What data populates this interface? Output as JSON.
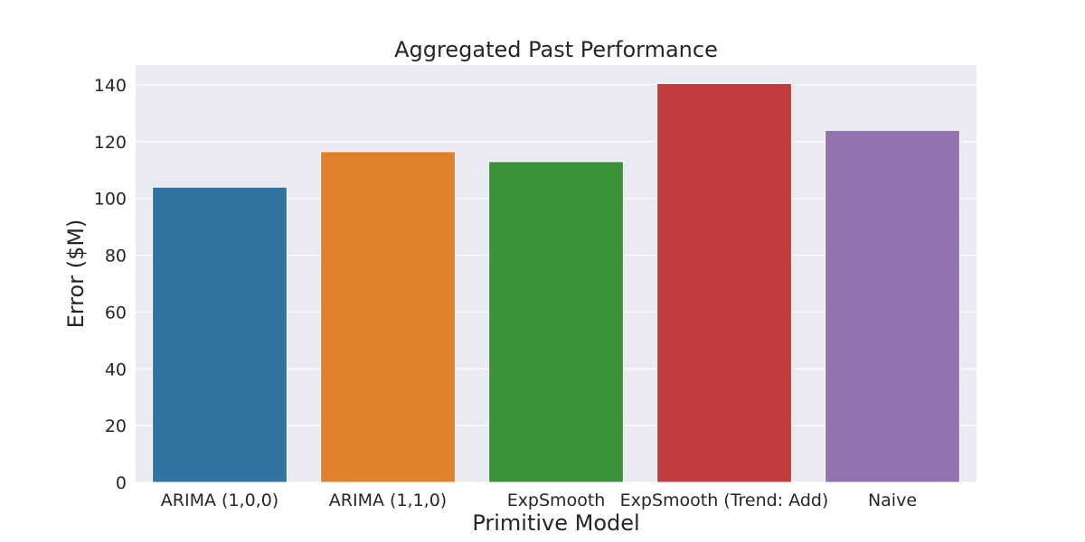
{
  "chart_data": {
    "type": "bar",
    "title": "Aggregated Past Performance",
    "xlabel": "Primitive Model",
    "ylabel": "Error ($M)",
    "categories": [
      "ARIMA (1,0,0)",
      "ARIMA (1,1,0)",
      "ExpSmooth",
      "ExpSmooth (Trend: Add)",
      "Naive"
    ],
    "values": [
      104,
      116.5,
      113,
      140.5,
      124
    ],
    "colors": [
      "#3274a1",
      "#e1812c",
      "#3a923a",
      "#c03d3e",
      "#9372b2"
    ],
    "ylim": [
      0,
      147
    ],
    "yticks": [
      0,
      20,
      40,
      60,
      80,
      100,
      120,
      140
    ],
    "grid": true,
    "background": "#eaeaf2"
  }
}
